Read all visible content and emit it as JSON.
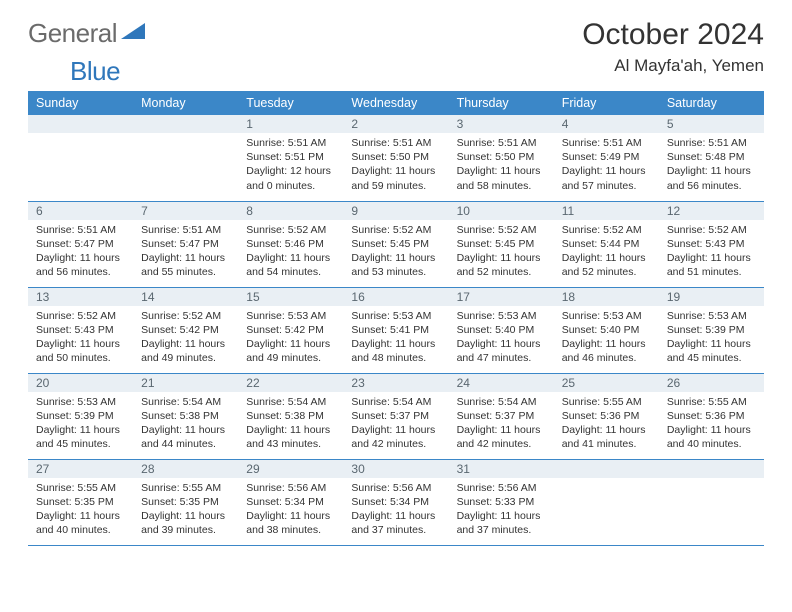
{
  "logo": {
    "text_gray": "General",
    "text_blue": "Blue"
  },
  "title": "October 2024",
  "location": "Al Mayfa'ah, Yemen",
  "colors": {
    "header_bg": "#3b87c8",
    "header_text": "#ffffff",
    "daynum_bg": "#e9eff4",
    "daynum_text": "#5a6770",
    "border": "#3b87c8",
    "logo_gray": "#6b6b6b",
    "logo_blue": "#2f77bb"
  },
  "weekdays": [
    "Sunday",
    "Monday",
    "Tuesday",
    "Wednesday",
    "Thursday",
    "Friday",
    "Saturday"
  ],
  "weeks": [
    [
      null,
      null,
      {
        "n": "1",
        "sr": "5:51 AM",
        "ss": "5:51 PM",
        "dl": "12 hours and 0 minutes."
      },
      {
        "n": "2",
        "sr": "5:51 AM",
        "ss": "5:50 PM",
        "dl": "11 hours and 59 minutes."
      },
      {
        "n": "3",
        "sr": "5:51 AM",
        "ss": "5:50 PM",
        "dl": "11 hours and 58 minutes."
      },
      {
        "n": "4",
        "sr": "5:51 AM",
        "ss": "5:49 PM",
        "dl": "11 hours and 57 minutes."
      },
      {
        "n": "5",
        "sr": "5:51 AM",
        "ss": "5:48 PM",
        "dl": "11 hours and 56 minutes."
      }
    ],
    [
      {
        "n": "6",
        "sr": "5:51 AM",
        "ss": "5:47 PM",
        "dl": "11 hours and 56 minutes."
      },
      {
        "n": "7",
        "sr": "5:51 AM",
        "ss": "5:47 PM",
        "dl": "11 hours and 55 minutes."
      },
      {
        "n": "8",
        "sr": "5:52 AM",
        "ss": "5:46 PM",
        "dl": "11 hours and 54 minutes."
      },
      {
        "n": "9",
        "sr": "5:52 AM",
        "ss": "5:45 PM",
        "dl": "11 hours and 53 minutes."
      },
      {
        "n": "10",
        "sr": "5:52 AM",
        "ss": "5:45 PM",
        "dl": "11 hours and 52 minutes."
      },
      {
        "n": "11",
        "sr": "5:52 AM",
        "ss": "5:44 PM",
        "dl": "11 hours and 52 minutes."
      },
      {
        "n": "12",
        "sr": "5:52 AM",
        "ss": "5:43 PM",
        "dl": "11 hours and 51 minutes."
      }
    ],
    [
      {
        "n": "13",
        "sr": "5:52 AM",
        "ss": "5:43 PM",
        "dl": "11 hours and 50 minutes."
      },
      {
        "n": "14",
        "sr": "5:52 AM",
        "ss": "5:42 PM",
        "dl": "11 hours and 49 minutes."
      },
      {
        "n": "15",
        "sr": "5:53 AM",
        "ss": "5:42 PM",
        "dl": "11 hours and 49 minutes."
      },
      {
        "n": "16",
        "sr": "5:53 AM",
        "ss": "5:41 PM",
        "dl": "11 hours and 48 minutes."
      },
      {
        "n": "17",
        "sr": "5:53 AM",
        "ss": "5:40 PM",
        "dl": "11 hours and 47 minutes."
      },
      {
        "n": "18",
        "sr": "5:53 AM",
        "ss": "5:40 PM",
        "dl": "11 hours and 46 minutes."
      },
      {
        "n": "19",
        "sr": "5:53 AM",
        "ss": "5:39 PM",
        "dl": "11 hours and 45 minutes."
      }
    ],
    [
      {
        "n": "20",
        "sr": "5:53 AM",
        "ss": "5:39 PM",
        "dl": "11 hours and 45 minutes."
      },
      {
        "n": "21",
        "sr": "5:54 AM",
        "ss": "5:38 PM",
        "dl": "11 hours and 44 minutes."
      },
      {
        "n": "22",
        "sr": "5:54 AM",
        "ss": "5:38 PM",
        "dl": "11 hours and 43 minutes."
      },
      {
        "n": "23",
        "sr": "5:54 AM",
        "ss": "5:37 PM",
        "dl": "11 hours and 42 minutes."
      },
      {
        "n": "24",
        "sr": "5:54 AM",
        "ss": "5:37 PM",
        "dl": "11 hours and 42 minutes."
      },
      {
        "n": "25",
        "sr": "5:55 AM",
        "ss": "5:36 PM",
        "dl": "11 hours and 41 minutes."
      },
      {
        "n": "26",
        "sr": "5:55 AM",
        "ss": "5:36 PM",
        "dl": "11 hours and 40 minutes."
      }
    ],
    [
      {
        "n": "27",
        "sr": "5:55 AM",
        "ss": "5:35 PM",
        "dl": "11 hours and 40 minutes."
      },
      {
        "n": "28",
        "sr": "5:55 AM",
        "ss": "5:35 PM",
        "dl": "11 hours and 39 minutes."
      },
      {
        "n": "29",
        "sr": "5:56 AM",
        "ss": "5:34 PM",
        "dl": "11 hours and 38 minutes."
      },
      {
        "n": "30",
        "sr": "5:56 AM",
        "ss": "5:34 PM",
        "dl": "11 hours and 37 minutes."
      },
      {
        "n": "31",
        "sr": "5:56 AM",
        "ss": "5:33 PM",
        "dl": "11 hours and 37 minutes."
      },
      null,
      null
    ]
  ],
  "labels": {
    "sunrise": "Sunrise:",
    "sunset": "Sunset:",
    "daylight": "Daylight:"
  }
}
